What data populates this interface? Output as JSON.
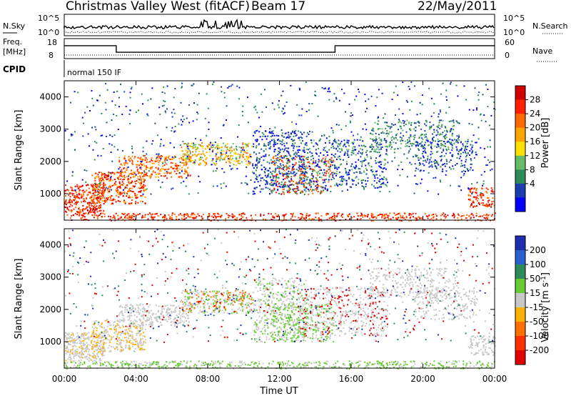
{
  "header": {
    "title": "Christmas Valley West (fitACF)",
    "beam": "Beam 17",
    "date": "22/May/2011"
  },
  "param_panels": {
    "nsky": {
      "left_label": "N.Sky",
      "right_label": "N.Search",
      "left_ticks": [
        "10^5",
        "10^0"
      ],
      "right_ticks": [
        "10^5",
        "10^0"
      ]
    },
    "freq": {
      "left_label_1": "Freq.",
      "left_label_2": "[MHz]",
      "right_label": "Nave",
      "left_ticks": [
        "18",
        "8"
      ],
      "right_ticks": [
        "60",
        "0"
      ]
    },
    "cpid": {
      "label": "CPID",
      "value": "normal 150 IF"
    }
  },
  "colorbars": {
    "power": {
      "title": "Power [dB]",
      "ticks": [
        "28",
        "24",
        "20",
        "16",
        "12",
        "8",
        "4"
      ],
      "colors": [
        "#d00000",
        "#ff2000",
        "#ff6a00",
        "#ffa500",
        "#ffe000",
        "#66bb66",
        "#2e8b57",
        "#1c3fb0",
        "#0000ff"
      ]
    },
    "velocity": {
      "title": "Velocity [m s^-1]",
      "ticks": [
        "200",
        "100",
        "50",
        "15",
        "-15",
        "-50",
        "-100",
        "-200"
      ],
      "colors": [
        "#1c2fb0",
        "#2a5fd0",
        "#2e8b57",
        "#66cc33",
        "#c8c8c8",
        "#ffb000",
        "#ff7000",
        "#ff3000",
        "#e00000"
      ]
    }
  },
  "chart_data": [
    {
      "type": "heatmap",
      "name": "power",
      "ylabel": "Slant Range [km]",
      "x_ticks": [
        "00:00",
        "04:00",
        "08:00",
        "12:00",
        "16:00",
        "20:00",
        "00:00"
      ],
      "y_ticks": [
        1000,
        2000,
        3000,
        4000
      ],
      "xlim_hours": [
        0,
        24
      ],
      "ylim_km": [
        180,
        4500
      ]
    },
    {
      "type": "heatmap",
      "name": "velocity",
      "ylabel": "Slant Range [km]",
      "xlabel": "Time UT",
      "x_ticks": [
        "00:00",
        "04:00",
        "08:00",
        "12:00",
        "16:00",
        "20:00",
        "00:00"
      ],
      "y_ticks": [
        1000,
        2000,
        3000,
        4000
      ],
      "xlim_hours": [
        0,
        24
      ],
      "ylim_km": [
        180,
        4500
      ]
    }
  ],
  "freq_trace": {
    "segments": [
      {
        "start_h": 0,
        "end_h": 2.9,
        "mhz": 15
      },
      {
        "start_h": 2.9,
        "end_h": 15.1,
        "mhz": 11
      },
      {
        "start_h": 15.1,
        "end_h": 24,
        "mhz": 15
      }
    ]
  }
}
